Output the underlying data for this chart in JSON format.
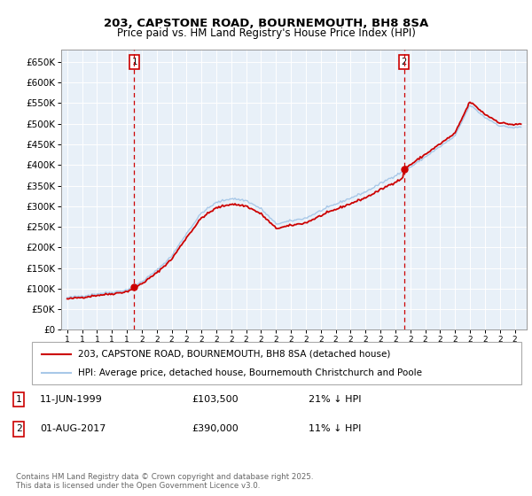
{
  "title": "203, CAPSTONE ROAD, BOURNEMOUTH, BH8 8SA",
  "subtitle": "Price paid vs. HM Land Registry's House Price Index (HPI)",
  "hpi_color": "#a8c8e8",
  "price_color": "#cc0000",
  "vline_color": "#cc0000",
  "chart_bg": "#e8f0f8",
  "ylim": [
    0,
    680000
  ],
  "yticks": [
    0,
    50000,
    100000,
    150000,
    200000,
    250000,
    300000,
    350000,
    400000,
    450000,
    500000,
    550000,
    600000,
    650000
  ],
  "ytick_labels": [
    "£0",
    "£50K",
    "£100K",
    "£150K",
    "£200K",
    "£250K",
    "£300K",
    "£350K",
    "£400K",
    "£450K",
    "£500K",
    "£550K",
    "£600K",
    "£650K"
  ],
  "sale1_month": 54,
  "sale1_price": 103500,
  "sale2_month": 271,
  "sale2_price": 390000,
  "legend_line1": "203, CAPSTONE ROAD, BOURNEMOUTH, BH8 8SA (detached house)",
  "legend_line2": "HPI: Average price, detached house, Bournemouth Christchurch and Poole",
  "table_row1": [
    "1",
    "11-JUN-1999",
    "£103,500",
    "21% ↓ HPI"
  ],
  "table_row2": [
    "2",
    "01-AUG-2017",
    "£390,000",
    "11% ↓ HPI"
  ],
  "footnote": "Contains HM Land Registry data © Crown copyright and database right 2025.\nThis data is licensed under the Open Government Licence v3.0.",
  "background_color": "#ffffff",
  "hpi_key_months": [
    0,
    12,
    24,
    36,
    48,
    60,
    72,
    84,
    96,
    108,
    120,
    132,
    144,
    156,
    168,
    180,
    192,
    204,
    216,
    228,
    240,
    252,
    264,
    276,
    288,
    300,
    312,
    324,
    336,
    348,
    360,
    365
  ],
  "hpi_key_vals": [
    78000,
    82000,
    88000,
    92000,
    98000,
    118000,
    145000,
    180000,
    235000,
    285000,
    310000,
    320000,
    315000,
    295000,
    258000,
    265000,
    272000,
    290000,
    305000,
    320000,
    335000,
    355000,
    375000,
    395000,
    420000,
    445000,
    470000,
    545000,
    515000,
    495000,
    490000,
    492000
  ]
}
